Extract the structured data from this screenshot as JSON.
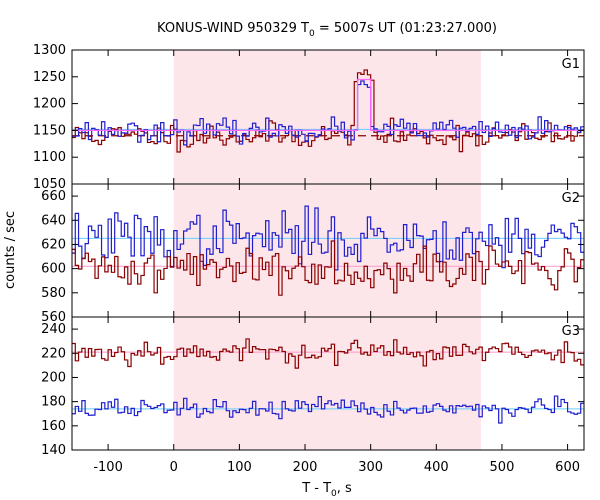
{
  "chart_data": {
    "type": "line",
    "title_parts": {
      "pre": "KONUS-WIND 950329 T",
      "sub": "0",
      "post": " = 5007s UT (01:23:27.000)"
    },
    "xlabel_parts": {
      "pre": "T - T",
      "sub": "0",
      "post": ", s"
    },
    "ylabel": "counts / sec",
    "xlim": [
      -155,
      625
    ],
    "x_ticks": [
      -100,
      0,
      100,
      200,
      300,
      400,
      500,
      600
    ],
    "x_tick_labels": [
      "-100",
      "0",
      "100",
      "200",
      "300",
      "400",
      "500",
      "600"
    ],
    "shaded_interval": [
      0,
      468
    ],
    "bin_width": 5,
    "panels": [
      {
        "name": "G1",
        "ylim": [
          1050,
          1300
        ],
        "y_ticks": [
          1050,
          1100,
          1150,
          1200,
          1250,
          1300
        ],
        "y_tick_labels": [
          "1050",
          "1100",
          "1150",
          "1200",
          "1250",
          "1300"
        ],
        "series": [
          {
            "color": "#8b0000",
            "background": 1140,
            "noise": 12,
            "seed": 11,
            "peak": {
              "start": 275,
              "end": 305,
              "value": 1255
            }
          },
          {
            "color": "#1f1fd0",
            "background": 1150,
            "noise": 10,
            "seed": 23,
            "peak": {
              "start": 280,
              "end": 300,
              "value": 1235
            }
          },
          {
            "color": "#ff66ff",
            "background": 1150,
            "noise": 0,
            "seed": 5,
            "peak": {
              "start": 280,
              "end": 300,
              "value": 1245
            },
            "smooth": true
          }
        ],
        "bg_lines": [
          {
            "color": "#66ccff",
            "value": 1152
          },
          {
            "color": "#8b0000",
            "value": 1140,
            "dashed": true
          }
        ]
      },
      {
        "name": "G2",
        "ylim": [
          560,
          670
        ],
        "y_ticks": [
          560,
          580,
          600,
          620,
          640,
          660
        ],
        "y_tick_labels": [
          "560",
          "580",
          "600",
          "620",
          "640",
          "660"
        ],
        "series": [
          {
            "color": "#1f1fd0",
            "background": 625,
            "noise": 11,
            "seed": 37
          },
          {
            "color": "#8b0000",
            "background": 601,
            "noise": 9,
            "seed": 41
          }
        ],
        "bg_lines": [
          {
            "color": "#66ccff",
            "value": 625
          },
          {
            "color": "#ff99cc",
            "value": 602
          }
        ]
      },
      {
        "name": "G3",
        "ylim": [
          140,
          250
        ],
        "y_ticks": [
          140,
          160,
          180,
          200,
          220,
          240
        ],
        "y_tick_labels": [
          "140",
          "160",
          "180",
          "200",
          "220",
          "240"
        ],
        "series": [
          {
            "color": "#8b0000",
            "background": 221,
            "noise": 5,
            "seed": 53
          },
          {
            "color": "#1f1fd0",
            "background": 174,
            "noise": 4,
            "seed": 67
          }
        ],
        "bg_lines": [
          {
            "color": "#ff99cc",
            "value": 221
          },
          {
            "color": "#66ccff",
            "value": 174
          }
        ]
      }
    ]
  }
}
